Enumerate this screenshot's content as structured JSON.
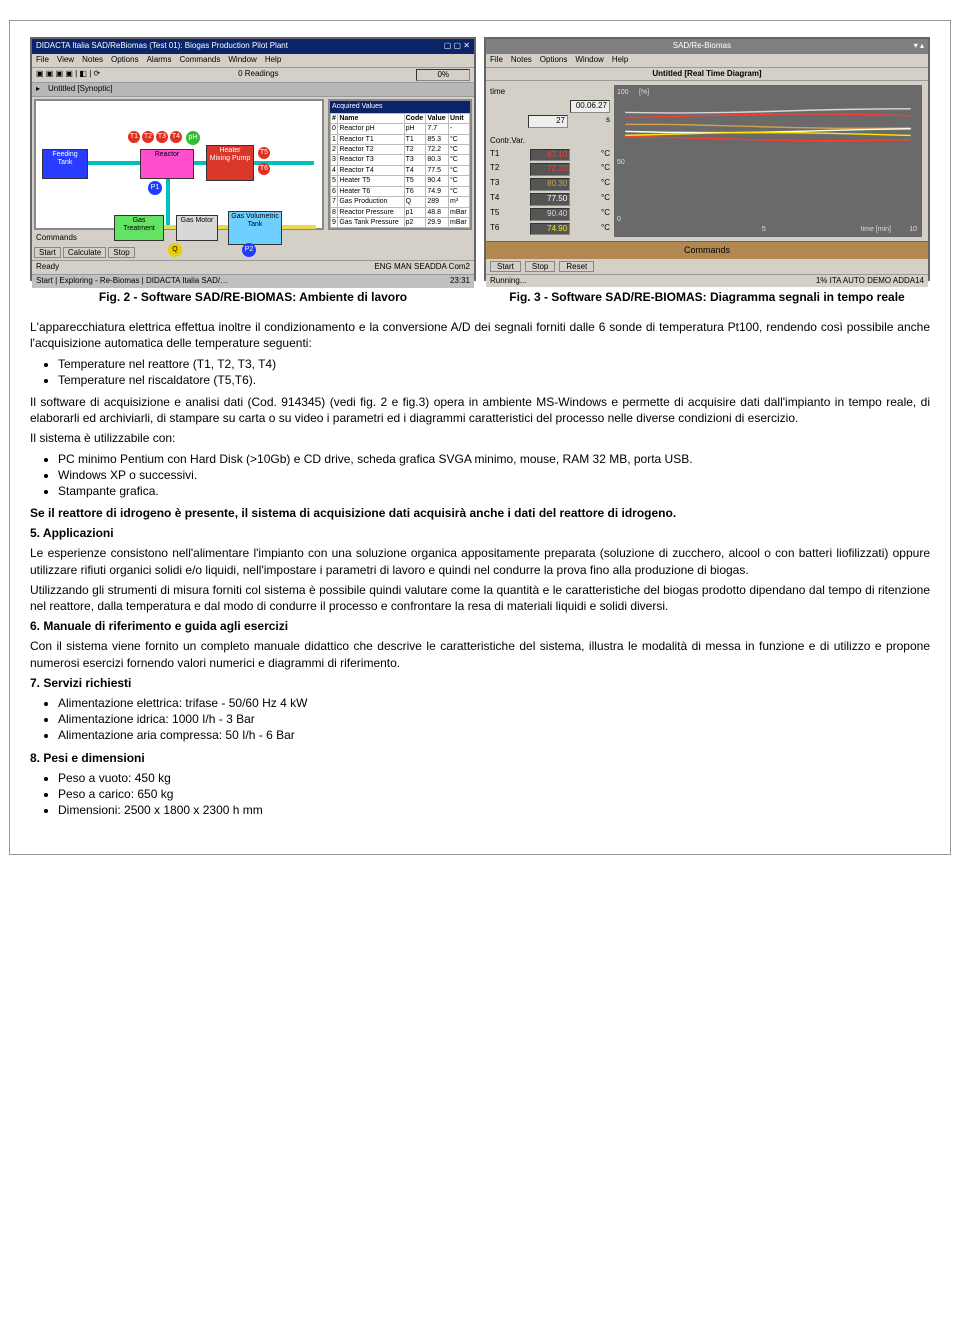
{
  "leftApp": {
    "title": "DIDACTA Italia SAD/ReBiomas (Test 01): Biogas Production Pilot Plant",
    "menus": [
      "File",
      "View",
      "Notes",
      "Options",
      "Alarms",
      "Commands",
      "Window",
      "Help"
    ],
    "toolbar_center": "0 Readings",
    "toolbar_pct": "0%",
    "subTitle": "Untitled [Synoptic]",
    "diagram": {
      "feeding": "Feeding Tank",
      "reactor": "Reactor",
      "heater": "Heater Mixing Pump",
      "gasTreat": "Gas Treatment",
      "gasMotor": "Gas Motor",
      "gasVol": "Gas Volumetric Tank",
      "circles": [
        "T1",
        "T2",
        "T3",
        "T4",
        "pH",
        "T5",
        "T6",
        "P1",
        "Q",
        "P2"
      ]
    },
    "table": {
      "title": "Acquired Values",
      "headers": [
        "#",
        "Name",
        "Code",
        "Value",
        "Unit"
      ],
      "rows": [
        [
          "0",
          "Reactor pH",
          "pH",
          "7.7",
          "-"
        ],
        [
          "1",
          "Reactor T1",
          "T1",
          "85.3",
          "°C"
        ],
        [
          "2",
          "Reactor T2",
          "T2",
          "72.2",
          "°C"
        ],
        [
          "3",
          "Reactor T3",
          "T3",
          "80.3",
          "°C"
        ],
        [
          "4",
          "Reactor T4",
          "T4",
          "77.5",
          "°C"
        ],
        [
          "5",
          "Heater T5",
          "T5",
          "90.4",
          "°C"
        ],
        [
          "6",
          "Heater T6",
          "T6",
          "74.9",
          "°C"
        ],
        [
          "7",
          "Gas Production",
          "Q",
          "289",
          "m³"
        ],
        [
          "8",
          "Reactor Pressure",
          "p1",
          "48.8",
          "mBar"
        ],
        [
          "9",
          "Gas Tank Pressure",
          "p2",
          "29.9",
          "mBar"
        ]
      ]
    },
    "cmd_label": "Commands",
    "cmd_buttons": [
      "Start",
      "Calculate",
      "Stop"
    ],
    "status_left": "Ready",
    "status_items": [
      "ENG",
      "MAN",
      "SEADDA Com2"
    ],
    "taskbar": [
      "Start",
      "Exploring - Re-Biomas",
      "DIDACTA Italia SAD/…"
    ],
    "clock": "23:31"
  },
  "rightApp": {
    "title": "SAD/Re-Biomas",
    "menus": [
      "File",
      "Notes",
      "Options",
      "Window",
      "Help"
    ],
    "subTitle": "Untitled [Real Time Diagram]",
    "timer_label": "time",
    "timer_value": "00.06.27",
    "timer_sec": "27",
    "timer_sec_unit": "s",
    "pct_label": "[%]",
    "ymax": "100",
    "ymid": "50",
    "ymin": "0",
    "xmax": "10",
    "xmid": "5",
    "xlabel": "time [min]",
    "contrvar": "Contr.Var.",
    "vars": [
      {
        "code": "T1",
        "value": "87.10",
        "unit": "°C",
        "color": "#ff3b30"
      },
      {
        "code": "T2",
        "value": "72.20",
        "unit": "°C",
        "color": "#ff3b30"
      },
      {
        "code": "T3",
        "value": "80.30",
        "unit": "°C",
        "color": "#cfa24a"
      },
      {
        "code": "T4",
        "value": "77.50",
        "unit": "°C",
        "color": "#ffffff"
      },
      {
        "code": "T5",
        "value": "90.40",
        "unit": "°C",
        "color": "#d8d8d8"
      },
      {
        "code": "T6",
        "value": "74.90",
        "unit": "°C",
        "color": "#ffe600"
      }
    ],
    "commands_label": "Commands",
    "buttons": [
      "Start",
      "Stop",
      "Reset"
    ],
    "status_left": "Running...",
    "status_items": [
      "1%",
      "ITA",
      "AUTO",
      "DEMO",
      "ADDA14"
    ]
  },
  "captions": {
    "left": "Fig. 2 - Software SAD/RE-BIOMAS: Ambiente di lavoro",
    "right": "Fig. 3 - Software SAD/RE-BIOMAS: Diagramma segnali in tempo reale"
  },
  "doc": {
    "intro": "L'apparecchiatura elettrica effettua inoltre il condizionamento e la conversione A/D dei segnali forniti dalle 6 sonde di temperatura Pt100, rendendo così possibile anche l'acquisizione automatica delle temperature seguenti:",
    "temp_list": [
      "Temperature nel reattore (T1, T2, T3, T4)",
      "Temperature nel riscaldatore (T5,T6)."
    ],
    "para2a": "Il software di acquisizione e analisi dati (Cod. 914345) (vedi fig. 2 e fig.3) opera in ambiente MS-Windows e permette di acquisire dati dall'impianto in tempo reale, di elaborarli ed archiviarli, di stampare su carta o su video i parametri ed i diagrammi caratteristici del processo nelle diverse condizioni di esercizio.",
    "para2b": "Il sistema è utilizzabile con:",
    "sys_list": [
      "PC minimo Pentium con Hard Disk (>10Gb) e CD drive, scheda grafica SVGA minimo, mouse, RAM 32 MB, porta USB.",
      "Windows XP o successivi.",
      "Stampante grafica."
    ],
    "bold_note": "Se il reattore di idrogeno è presente, il sistema di acquisizione dati acquisirà anche i dati del reattore di idrogeno.",
    "s5_h": "5.  Applicazioni",
    "s5_p1": "Le esperienze consistono nell'alimentare l'impianto con una soluzione organica appositamente preparata (soluzione di zucchero, alcool o con batteri liofilizzati) oppure utilizzare rifiuti organici solidi e/o liquidi, nell'impostare i parametri di lavoro e quindi nel condurre la prova fino alla produzione di biogas.",
    "s5_p2": "Utilizzando gli strumenti di misura forniti col sistema è possibile quindi valutare come la quantità e le caratteristiche del biogas prodotto dipendano dal tempo di ritenzione nel reattore, dalla temperatura e dal modo di condurre il processo e confrontare la resa di materiali liquidi e solidi diversi.",
    "s6_h": "6.  Manuale di riferimento e guida agli esercizi",
    "s6_p": "Con il sistema viene fornito un completo manuale didattico che descrive le caratteristiche del sistema, illustra le modalità di messa in funzione e di utilizzo e propone numerosi esercizi fornendo valori numerici e diagrammi di riferimento.",
    "s7_h": "7.  Servizi richiesti",
    "s7_list": [
      "Alimentazione elettrica: trifase - 50/60 Hz 4 kW",
      "Alimentazione idrica: 1000 I/h - 3 Bar",
      "Alimentazione aria compressa: 50 I/h - 6 Bar"
    ],
    "s8_h": "8.  Pesi e dimensioni",
    "s8_list": [
      "Peso a vuoto:  450 kg",
      "Peso a carico: 650 kg",
      "Dimensioni: 2500 x 1800 x 2300 h mm"
    ]
  }
}
